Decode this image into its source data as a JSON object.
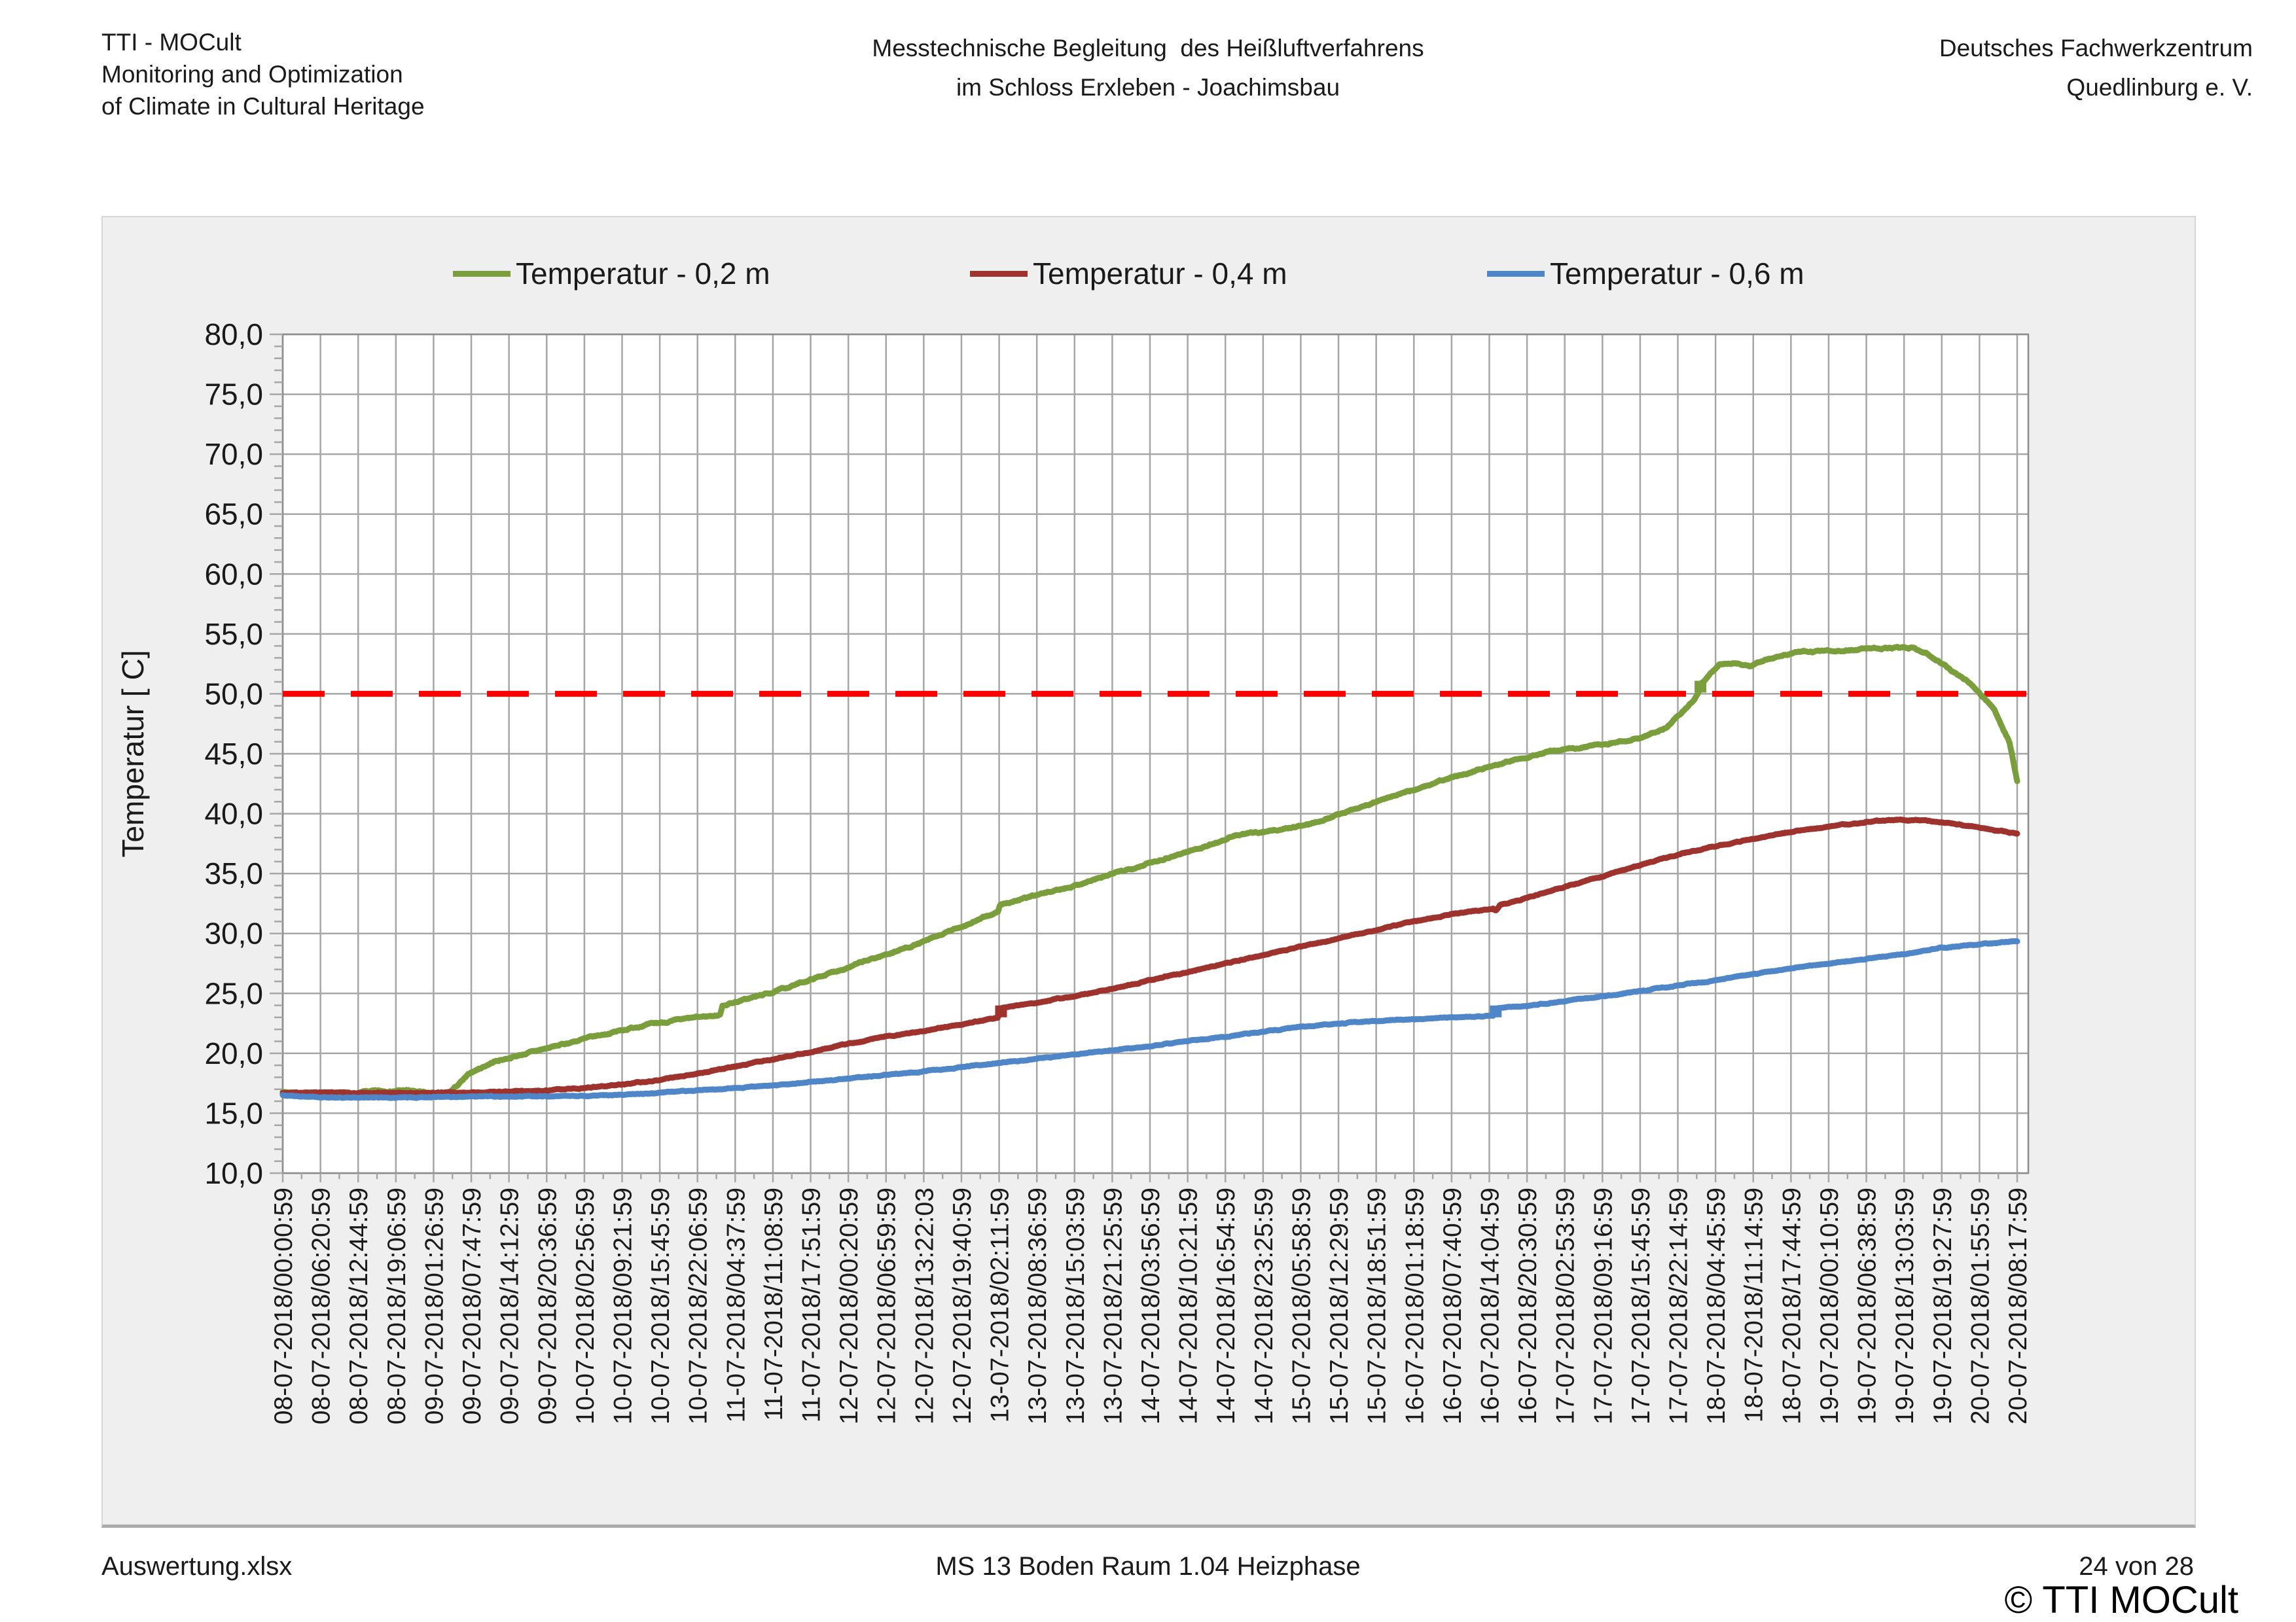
{
  "header": {
    "left_lines": [
      "TTI - MOCult",
      "Monitoring and Optimization",
      "of Climate in Cultural Heritage"
    ],
    "center_lines": [
      "Messtechnische Begleitung  des Heißluftverfahrens",
      "im Schloss Erxleben - Joachimsbau"
    ],
    "right_lines": [
      "Deutsches Fachwerkzentrum",
      "Quedlinburg e. V."
    ]
  },
  "footer": {
    "left": "Auswertung.xlsx",
    "center": "MS 13 Boden Raum 1.04 Heizphase",
    "right": "24 von 28",
    "copyright": "© TTI MOCult"
  },
  "colors": {
    "chart_background": "#efefef",
    "plot_background": "#ffffff",
    "gridline": "#a6a6a6",
    "plot_border": "#8c8c8c",
    "tick": "#8c8c8c",
    "threshold_red": "#ff0000",
    "series_green": "#7a9e3c",
    "series_dark_red": "#9e322d",
    "series_blue": "#4e86c8"
  },
  "chart_data": {
    "type": "line",
    "title": "",
    "xlabel": "",
    "ylabel": "Temperatur [ C]",
    "ylim": [
      10,
      80
    ],
    "ytick_step": 5,
    "ytick_labels": [
      "10,0",
      "15,0",
      "20,0",
      "25,0",
      "30,0",
      "35,0",
      "40,0",
      "45,0",
      "50,0",
      "55,0",
      "60,0",
      "65,0",
      "70,0",
      "75,0",
      "80,0"
    ],
    "grid": true,
    "legend_position": "top",
    "threshold": {
      "value": 50.0,
      "color": "#ff0000",
      "style": "dashed"
    },
    "x_labels": [
      "08-07-2018/00:00:59",
      "08-07-2018/06:20:59",
      "08-07-2018/12:44:59",
      "08-07-2018/19:06:59",
      "09-07-2018/01:26:59",
      "09-07-2018/07:47:59",
      "09-07-2018/14:12:59",
      "09-07-2018/20:36:59",
      "10-07-2018/02:56:59",
      "10-07-2018/09:21:59",
      "10-07-2018/15:45:59",
      "10-07-2018/22:06:59",
      "11-07-2018/04:37:59",
      "11-07-2018/11:08:59",
      "11-07-2018/17:51:59",
      "12-07-2018/00:20:59",
      "12-07-2018/06:59:59",
      "12-07-2018/13:22:03",
      "12-07-2018/19:40:59",
      "13-07-2018/02:11:59",
      "13-07-2018/08:36:59",
      "13-07-2018/15:03:59",
      "13-07-2018/21:25:59",
      "14-07-2018/03:56:59",
      "14-07-2018/10:21:59",
      "14-07-2018/16:54:59",
      "14-07-2018/23:25:59",
      "15-07-2018/05:58:59",
      "15-07-2018/12:29:59",
      "15-07-2018/18:51:59",
      "16-07-2018/01:18:59",
      "16-07-2018/07:40:59",
      "16-07-2018/14:04:59",
      "16-07-2018/20:30:59",
      "17-07-2018/02:53:59",
      "17-07-2018/09:16:59",
      "17-07-2018/15:45:59",
      "17-07-2018/22:14:59",
      "18-07-2018/04:45:59",
      "18-07-2018/11:14:59",
      "18-07-2018/17:44:59",
      "19-07-2018/00:10:59",
      "19-07-2018/06:38:59",
      "19-07-2018/13:03:59",
      "19-07-2018/19:27:59",
      "20-07-2018/01:55:59",
      "20-07-2018/08:17:59"
    ],
    "series": [
      {
        "name": "Temperatur - 0,2 m",
        "color": "#7a9e3c",
        "noise": 0.13,
        "markers": [
          [
            38.6,
            50.6
          ]
        ],
        "keypoints": [
          [
            1,
            16.8
          ],
          [
            1.8,
            16.5
          ],
          [
            2.6,
            16.3
          ],
          [
            3.2,
            16.8
          ],
          [
            4.3,
            16.9
          ],
          [
            5,
            16.6
          ],
          [
            5.35,
            16.5
          ],
          [
            6,
            18.4
          ],
          [
            6.6,
            19.3
          ],
          [
            7.6,
            20.1
          ],
          [
            9,
            21.2
          ],
          [
            10.5,
            22.3
          ],
          [
            12,
            23.0
          ],
          [
            12.6,
            23.2
          ],
          [
            12.66,
            24.0
          ],
          [
            14,
            25.1
          ],
          [
            16,
            27.2
          ],
          [
            18,
            29.3
          ],
          [
            19.97,
            31.8
          ],
          [
            20.03,
            32.4
          ],
          [
            22,
            34.0
          ],
          [
            24,
            35.9
          ],
          [
            25.5,
            37.3
          ],
          [
            26.3,
            38.2
          ],
          [
            27.5,
            38.7
          ],
          [
            28.2,
            39.1
          ],
          [
            30,
            41.0
          ],
          [
            32,
            43.0
          ],
          [
            33.5,
            44.4
          ],
          [
            34.5,
            45.1
          ],
          [
            36,
            45.8
          ],
          [
            37,
            46.3
          ],
          [
            37.7,
            47.2
          ],
          [
            38.45,
            49.6
          ],
          [
            38.55,
            50.2
          ],
          [
            38.62,
            50.9
          ],
          [
            39.1,
            52.4
          ],
          [
            39.5,
            52.6
          ],
          [
            39.9,
            52.3
          ],
          [
            40.6,
            53.1
          ],
          [
            41.3,
            53.5
          ],
          [
            42.3,
            53.6
          ],
          [
            43.2,
            53.8
          ],
          [
            44.2,
            53.8
          ],
          [
            44.6,
            53.4
          ],
          [
            45.1,
            52.3
          ],
          [
            45.8,
            50.8
          ],
          [
            46.4,
            48.7
          ],
          [
            46.8,
            45.9
          ],
          [
            47,
            42.7
          ]
        ]
      },
      {
        "name": "Temperatur - 0,4 m",
        "color": "#9e322d",
        "noise": 0.08,
        "markers": [
          [
            20.05,
            23.5
          ]
        ],
        "keypoints": [
          [
            1,
            16.7
          ],
          [
            3,
            16.7
          ],
          [
            5,
            16.7
          ],
          [
            7,
            16.8
          ],
          [
            8,
            16.9
          ],
          [
            9,
            17.1
          ],
          [
            10,
            17.4
          ],
          [
            11,
            17.8
          ],
          [
            12,
            18.3
          ],
          [
            13,
            18.9
          ],
          [
            14,
            19.5
          ],
          [
            15,
            20.1
          ],
          [
            16,
            20.8
          ],
          [
            17,
            21.4
          ],
          [
            18,
            21.9
          ],
          [
            19,
            22.4
          ],
          [
            19.97,
            23.0
          ],
          [
            20.03,
            23.8
          ],
          [
            21,
            24.2
          ],
          [
            22,
            24.8
          ],
          [
            23,
            25.4
          ],
          [
            24,
            26.1
          ],
          [
            25,
            26.8
          ],
          [
            26,
            27.5
          ],
          [
            27,
            28.2
          ],
          [
            28,
            28.9
          ],
          [
            29,
            29.6
          ],
          [
            30,
            30.3
          ],
          [
            31,
            31.0
          ],
          [
            32,
            31.6
          ],
          [
            33.1,
            32.1
          ],
          [
            33.17,
            31.9
          ],
          [
            33.3,
            32.4
          ],
          [
            34,
            33.0
          ],
          [
            35,
            33.9
          ],
          [
            36,
            34.8
          ],
          [
            37,
            35.7
          ],
          [
            38,
            36.6
          ],
          [
            39,
            37.3
          ],
          [
            40,
            37.9
          ],
          [
            41,
            38.5
          ],
          [
            42,
            38.9
          ],
          [
            43,
            39.3
          ],
          [
            43.8,
            39.5
          ],
          [
            44.6,
            39.4
          ],
          [
            45.5,
            39.1
          ],
          [
            46.3,
            38.7
          ],
          [
            47,
            38.3
          ]
        ]
      },
      {
        "name": "Temperatur - 0,6 m",
        "color": "#4e86c8",
        "noise": 0.07,
        "markers": [
          [
            33.17,
            23.5
          ]
        ],
        "keypoints": [
          [
            1,
            16.5
          ],
          [
            2,
            16.35
          ],
          [
            3,
            16.3
          ],
          [
            5,
            16.35
          ],
          [
            7,
            16.4
          ],
          [
            9,
            16.45
          ],
          [
            10,
            16.55
          ],
          [
            11,
            16.7
          ],
          [
            12,
            16.9
          ],
          [
            13,
            17.1
          ],
          [
            14,
            17.35
          ],
          [
            15,
            17.6
          ],
          [
            16,
            17.9
          ],
          [
            17,
            18.2
          ],
          [
            18,
            18.5
          ],
          [
            19,
            18.85
          ],
          [
            20,
            19.2
          ],
          [
            21,
            19.55
          ],
          [
            22,
            19.9
          ],
          [
            23,
            20.25
          ],
          [
            24,
            20.6
          ],
          [
            25,
            21.0
          ],
          [
            26,
            21.4
          ],
          [
            27,
            21.8
          ],
          [
            28,
            22.2
          ],
          [
            29,
            22.5
          ],
          [
            30,
            22.7
          ],
          [
            31,
            22.85
          ],
          [
            32,
            23.0
          ],
          [
            33.1,
            23.15
          ],
          [
            33.17,
            23.75
          ],
          [
            34,
            23.95
          ],
          [
            35,
            24.35
          ],
          [
            36,
            24.75
          ],
          [
            37,
            25.2
          ],
          [
            38,
            25.65
          ],
          [
            39,
            26.1
          ],
          [
            40,
            26.6
          ],
          [
            41,
            27.1
          ],
          [
            42,
            27.5
          ],
          [
            43,
            27.9
          ],
          [
            44,
            28.3
          ],
          [
            45,
            28.8
          ],
          [
            46,
            29.1
          ],
          [
            47,
            29.4
          ]
        ]
      }
    ]
  }
}
